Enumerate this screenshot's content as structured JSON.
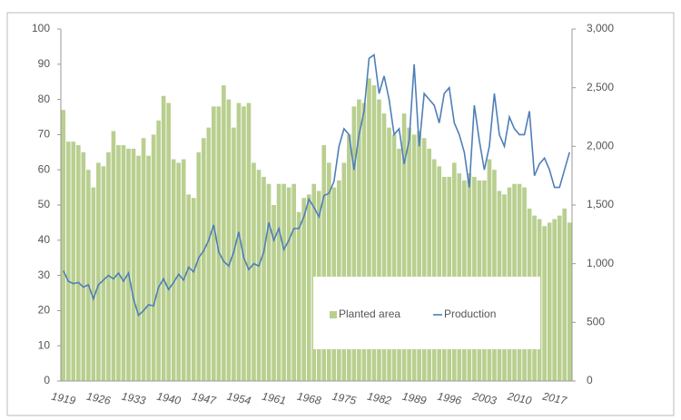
{
  "chart_data": {
    "type": "bar_line",
    "categories": [
      "1919",
      null,
      null,
      null,
      null,
      null,
      null,
      "1926",
      null,
      null,
      null,
      null,
      null,
      null,
      "1933",
      null,
      null,
      null,
      null,
      null,
      null,
      "1940",
      null,
      null,
      null,
      null,
      null,
      null,
      "1947",
      null,
      null,
      null,
      null,
      null,
      null,
      "1954",
      null,
      null,
      null,
      null,
      null,
      null,
      "1961",
      null,
      null,
      null,
      null,
      null,
      null,
      "1968",
      null,
      null,
      null,
      null,
      null,
      null,
      "1975",
      null,
      null,
      null,
      null,
      null,
      null,
      "1982",
      null,
      null,
      null,
      null,
      null,
      null,
      "1989",
      null,
      null,
      null,
      null,
      null,
      null,
      "1996",
      null,
      null,
      null,
      null,
      null,
      null,
      "2003",
      null,
      null,
      null,
      null,
      null,
      null,
      "2010",
      null,
      null,
      null,
      null,
      null,
      null,
      "2017",
      null,
      null,
      null
    ],
    "series": [
      {
        "name": "Planted area",
        "color": "#b9cf8f",
        "axis": "y",
        "values": [
          77,
          68,
          68,
          67,
          65,
          60,
          55,
          62,
          61,
          65,
          71,
          67,
          67,
          66,
          66,
          64,
          69,
          64,
          70,
          74,
          81,
          79,
          63,
          62,
          63,
          53,
          52,
          65,
          69,
          72,
          78,
          78,
          84,
          80,
          72,
          79,
          78,
          79,
          62,
          60,
          58,
          56,
          50,
          56,
          56,
          55,
          56,
          48,
          52,
          53,
          56,
          54,
          67,
          62,
          55,
          57,
          62,
          70,
          78,
          80,
          79,
          86,
          84,
          80,
          76,
          72,
          70,
          66,
          76,
          72,
          70,
          71,
          69,
          66,
          63,
          61,
          58,
          58,
          62,
          59,
          57,
          59,
          58,
          57,
          57,
          63,
          60,
          54,
          53,
          55,
          56,
          56,
          55,
          49,
          47,
          46,
          44,
          45,
          46,
          47,
          49,
          45
        ]
      },
      {
        "name": "Production",
        "color": "#4f7fb8",
        "axis": "y2",
        "values": [
          940,
          850,
          830,
          840,
          800,
          820,
          700,
          820,
          860,
          900,
          870,
          920,
          850,
          920,
          700,
          560,
          600,
          650,
          640,
          800,
          870,
          780,
          840,
          910,
          860,
          970,
          930,
          1050,
          1110,
          1200,
          1330,
          1100,
          1020,
          980,
          1100,
          1270,
          1050,
          950,
          1000,
          980,
          1100,
          1350,
          1200,
          1300,
          1120,
          1200,
          1300,
          1300,
          1400,
          1550,
          1480,
          1400,
          1580,
          1600,
          1700,
          2000,
          2150,
          2100,
          1800,
          2100,
          2300,
          2750,
          2780,
          2450,
          2600,
          2400,
          2100,
          2150,
          1850,
          2050,
          2700,
          2000,
          2450,
          2400,
          2350,
          2200,
          2450,
          2500,
          2200,
          2100,
          1950,
          1650,
          2350,
          2050,
          1800,
          2000,
          2450,
          2100,
          2000,
          2250,
          2150,
          2100,
          2100,
          2300,
          1750,
          1850,
          1900,
          1800,
          1650,
          1650,
          1800,
          1950
        ]
      }
    ],
    "ylim": [
      0,
      100
    ],
    "yticks": [
      0,
      10,
      20,
      30,
      40,
      50,
      60,
      70,
      80,
      90,
      100
    ],
    "y2lim": [
      0,
      3000
    ],
    "y2ticks": [
      0,
      500,
      {
        "value": 1000,
        "label": "1,000"
      },
      {
        "value": 1500,
        "label": "1,500"
      },
      {
        "value": 2000,
        "label": "2,000"
      },
      {
        "value": 2500,
        "label": "2,500"
      },
      {
        "value": 3000,
        "label": "3,000"
      }
    ],
    "legend": "lower right"
  }
}
